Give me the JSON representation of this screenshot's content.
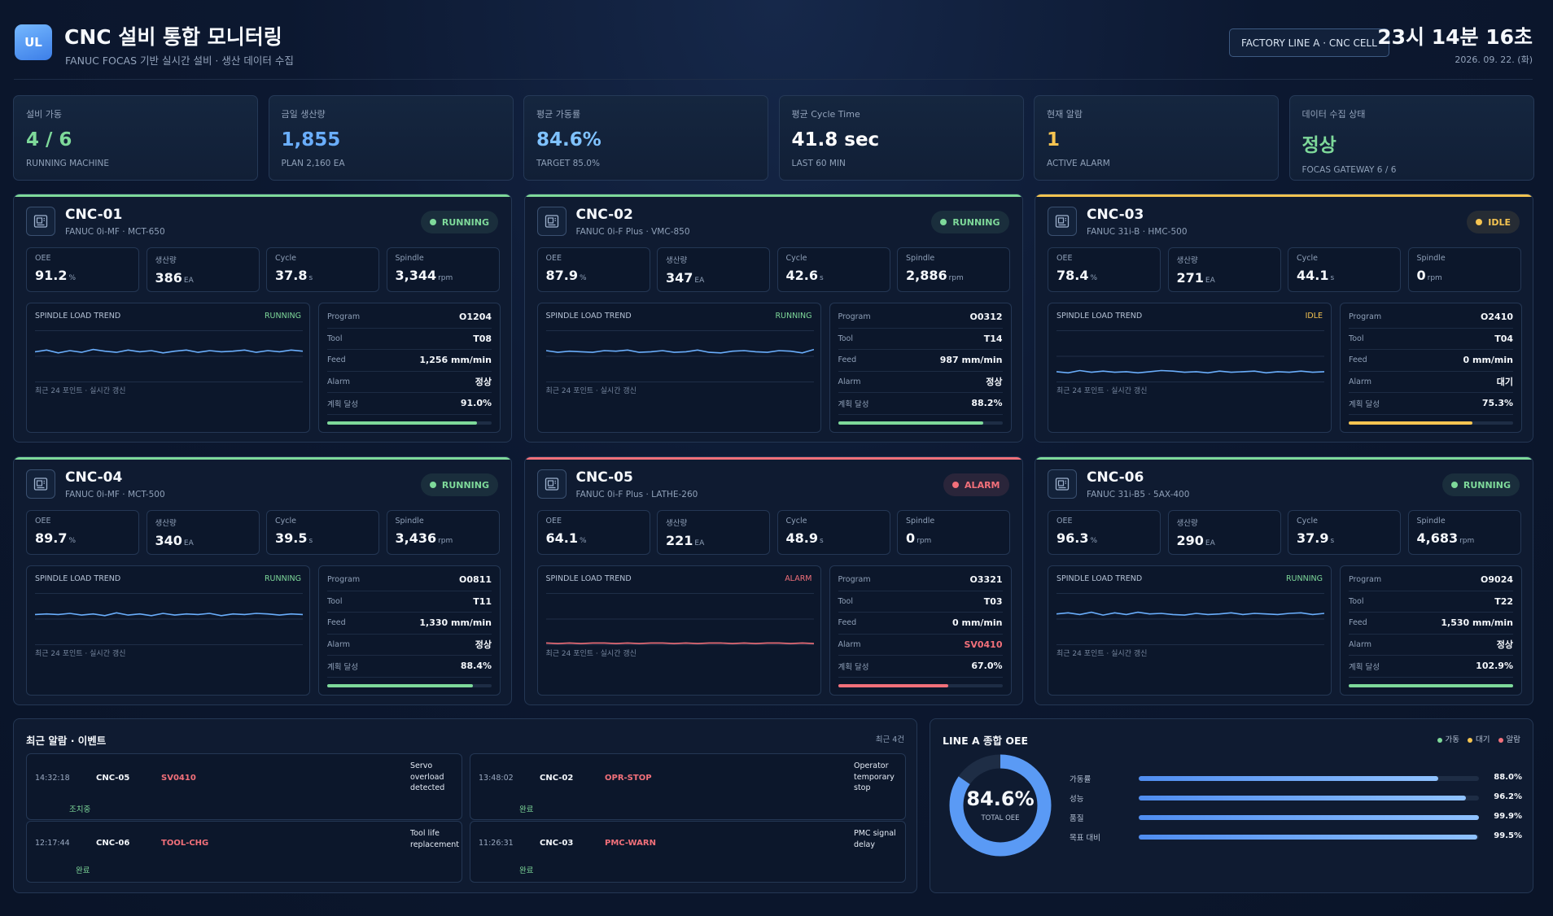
{
  "header": {
    "logo": "UL",
    "title": "CNC 설비 통합 모니터링",
    "subtitle": "FANUC FOCAS 기반 실시간 설비 · 생산 데이터 수집",
    "line_badge": "FACTORY LINE A · CNC CELL",
    "clock": "23시 14분 16초",
    "date": "2026. 09. 22. (화)"
  },
  "kpis": [
    {
      "label": "설비 가동",
      "value": "4 / 6",
      "sub": "RUNNING MACHINE",
      "color": "#7ed99a"
    },
    {
      "label": "금일 생산량",
      "value": "1,855",
      "sub": "PLAN 2,160 EA",
      "color": "#6aaefc"
    },
    {
      "label": "평균 가동률",
      "value": "84.6%",
      "sub": "TARGET 85.0%",
      "color": "#7fc2ff"
    },
    {
      "label": "평균 Cycle Time",
      "value": "41.8 sec",
      "sub": "LAST 60 MIN",
      "color": "#ffffff"
    },
    {
      "label": "현재 알람",
      "value": "1",
      "sub": "ACTIVE ALARM",
      "color": "#f5c451"
    },
    {
      "label": "데이터 수집 상태",
      "value": "정상",
      "sub": "FOCAS GATEWAY 6 / 6",
      "color": "#7ed99a"
    }
  ],
  "machine_labels": {
    "oee": "OEE",
    "output": "생산량",
    "cycle": "Cycle",
    "spindle": "Spindle",
    "trend_title": "SPINDLE LOAD TREND",
    "trend_note": "최근 24 포인트 · 실시간 갱신",
    "program": "Program",
    "tool": "Tool",
    "feed": "Feed",
    "alarm": "Alarm",
    "plan": "계획 달성",
    "unit_pct": "%",
    "unit_ea": "EA",
    "unit_s": "s",
    "unit_rpm": "rpm"
  },
  "machines": [
    {
      "name": "CNC-01",
      "model": "FANUC 0i-MF · MCT-650",
      "status": "RUNNING",
      "color": "#7ed99a",
      "oee": "91.2",
      "output": "386",
      "cycle": "37.8",
      "spindle": "3,344",
      "program": "O1204",
      "tool": "T08",
      "feed": "1,256 mm/min",
      "alarm": "정상",
      "plan": "91.0%",
      "plan_ratio": 0.91,
      "trend": [
        58,
        61,
        56,
        60,
        57,
        62,
        59,
        57,
        61,
        58,
        60,
        56,
        59,
        61,
        57,
        60,
        58,
        59,
        61,
        57,
        60,
        58,
        61,
        59
      ],
      "trend_color": "#6aaefc"
    },
    {
      "name": "CNC-02",
      "model": "FANUC 0i-F Plus · VMC-850",
      "status": "RUNNING",
      "color": "#7ed99a",
      "oee": "87.9",
      "output": "347",
      "cycle": "42.6",
      "spindle": "2,886",
      "program": "O0312",
      "tool": "T14",
      "feed": "987 mm/min",
      "alarm": "정상",
      "plan": "88.2%",
      "plan_ratio": 0.882,
      "trend": [
        60,
        57,
        59,
        58,
        57,
        60,
        59,
        61,
        57,
        58,
        60,
        57,
        58,
        61,
        57,
        56,
        59,
        60,
        58,
        57,
        60,
        59,
        56,
        62
      ],
      "trend_color": "#6aaefc"
    },
    {
      "name": "CNC-03",
      "model": "FANUC 31i-B · HMC-500",
      "status": "IDLE",
      "color": "#f5c451",
      "oee": "78.4",
      "output": "271",
      "cycle": "44.1",
      "spindle": "0",
      "program": "O2410",
      "tool": "T04",
      "feed": "0 mm/min",
      "alarm": "대기",
      "plan": "75.3%",
      "plan_ratio": 0.753,
      "trend": [
        23,
        21,
        25,
        22,
        24,
        22,
        23,
        21,
        23,
        25,
        24,
        22,
        23,
        21,
        24,
        22,
        23,
        24,
        21,
        23,
        22,
        24,
        22,
        23
      ],
      "trend_color": "#6aaefc"
    },
    {
      "name": "CNC-04",
      "model": "FANUC 0i-MF · MCT-500",
      "status": "RUNNING",
      "color": "#7ed99a",
      "oee": "89.7",
      "output": "340",
      "cycle": "39.5",
      "spindle": "3,436",
      "program": "O0811",
      "tool": "T11",
      "feed": "1,330 mm/min",
      "alarm": "정상",
      "plan": "88.4%",
      "plan_ratio": 0.884,
      "trend": [
        58,
        59,
        58,
        60,
        57,
        59,
        56,
        61,
        57,
        59,
        56,
        60,
        57,
        59,
        58,
        60,
        56,
        59,
        58,
        60,
        59,
        57,
        59,
        58
      ],
      "trend_color": "#6aaefc"
    },
    {
      "name": "CNC-05",
      "model": "FANUC 0i-F Plus · LATHE-260",
      "status": "ALARM",
      "color": "#f2707a",
      "oee": "64.1",
      "output": "221",
      "cycle": "48.9",
      "spindle": "0",
      "program": "O3321",
      "tool": "T03",
      "feed": "0 mm/min",
      "alarm": "SV0410",
      "plan": "67.0%",
      "plan_ratio": 0.67,
      "trend": [
        8,
        7,
        8,
        7,
        8,
        8,
        7,
        8,
        7,
        8,
        8,
        7,
        8,
        7,
        8,
        8,
        7,
        8,
        7,
        8,
        8,
        7,
        8,
        7
      ],
      "trend_color": "#f2707a"
    },
    {
      "name": "CNC-06",
      "model": "FANUC 31i-B5 · 5AX-400",
      "status": "RUNNING",
      "color": "#7ed99a",
      "oee": "96.3",
      "output": "290",
      "cycle": "37.9",
      "spindle": "4,683",
      "program": "O9024",
      "tool": "T22",
      "feed": "1,530 mm/min",
      "alarm": "정상",
      "plan": "102.9%",
      "plan_ratio": 1.0,
      "trend": [
        59,
        61,
        58,
        62,
        57,
        61,
        58,
        62,
        59,
        60,
        58,
        57,
        60,
        58,
        59,
        61,
        58,
        60,
        59,
        58,
        60,
        61,
        58,
        60
      ],
      "trend_color": "#6aaefc"
    }
  ],
  "events": {
    "title": "최근 알람 · 이벤트",
    "count": "최근 4건",
    "items": [
      {
        "time": "14:32:18",
        "machine": "CNC-05",
        "code": "SV0410",
        "desc": "Servo overload detected",
        "status": "조치중"
      },
      {
        "time": "13:48:02",
        "machine": "CNC-02",
        "code": "OPR-STOP",
        "desc": "Operator temporary stop",
        "status": "완료"
      },
      {
        "time": "12:17:44",
        "machine": "CNC-06",
        "code": "TOOL-CHG",
        "desc": "Tool life replacement",
        "status": "완료"
      },
      {
        "time": "11:26:31",
        "machine": "CNC-03",
        "code": "PMC-WARN",
        "desc": "PMC signal delay",
        "status": "완료"
      }
    ]
  },
  "oee": {
    "title": "LINE A 종합 OEE",
    "legend": [
      {
        "label": "가동",
        "color": "#7ed99a"
      },
      {
        "label": "대기",
        "color": "#f5c451"
      },
      {
        "label": "알람",
        "color": "#f2707a"
      }
    ],
    "total_value": "84.6%",
    "total_label": "TOTAL OEE",
    "total_ratio": 0.846,
    "rows": [
      {
        "label": "가동률",
        "value": "88.0%",
        "ratio": 0.88
      },
      {
        "label": "성능",
        "value": "96.2%",
        "ratio": 0.962
      },
      {
        "label": "품질",
        "value": "99.9%",
        "ratio": 0.999
      },
      {
        "label": "목표 대비",
        "value": "99.5%",
        "ratio": 0.995
      }
    ]
  }
}
